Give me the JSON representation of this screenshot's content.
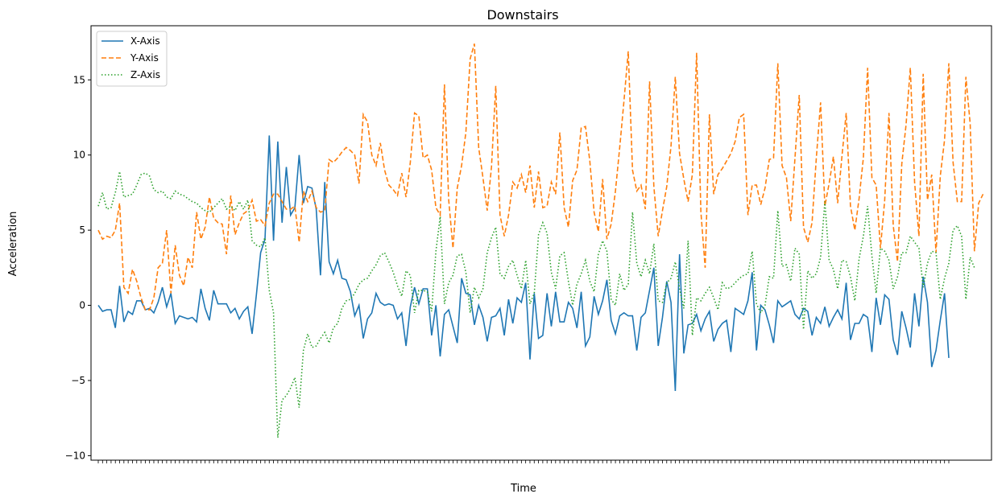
{
  "chart_data": {
    "type": "line",
    "title": "Downstairs",
    "xlabel": "Time",
    "ylabel": "Acceleration",
    "ylim": [
      -10.3,
      18.6
    ],
    "yticks": [
      -10,
      -5,
      0,
      5,
      10,
      15
    ],
    "ytick_labels": [
      "−10",
      "−5",
      "0",
      "5",
      "10",
      "15"
    ],
    "grid": false,
    "legend_position": "top-left",
    "series": [
      {
        "name": "X-Axis",
        "color": "#1f77b4",
        "style": "solid",
        "values": [
          0.0,
          -0.4,
          -0.3,
          -0.3,
          -1.5,
          1.3,
          -1.1,
          -0.4,
          -0.6,
          0.3,
          0.3,
          -0.3,
          -0.2,
          -0.5,
          0.2,
          1.2,
          -0.1,
          0.8,
          -1.2,
          -0.7,
          -0.8,
          -0.9,
          -0.8,
          -1.1,
          1.1,
          -0.2,
          -1.0,
          1.0,
          0.1,
          0.1,
          0.1,
          -0.5,
          -0.2,
          -0.9,
          -0.4,
          -0.1,
          -1.9,
          0.7,
          3.5,
          4.4,
          11.3,
          4.3,
          10.9,
          5.5,
          9.2,
          6.0,
          6.5,
          10.0,
          6.8,
          7.9,
          7.8,
          6.4,
          2.0,
          8.2,
          2.9,
          2.1,
          3.0,
          1.8,
          1.7,
          0.9,
          -0.7,
          0.0,
          -2.2,
          -0.9,
          -0.5,
          0.8,
          0.2,
          0.0,
          0.1,
          0.0,
          -0.9,
          -0.5,
          -2.7,
          -0.1,
          1.2,
          0.1,
          1.1,
          1.1,
          -2.0,
          0.0,
          -3.4,
          -0.6,
          -0.3,
          -1.4,
          -2.5,
          1.8,
          0.8,
          0.7,
          -1.3,
          0.0,
          -0.8,
          -2.4,
          -0.8,
          -0.7,
          -0.2,
          -2.0,
          0.4,
          -1.2,
          0.5,
          0.2,
          1.5,
          -3.6,
          0.8,
          -2.2,
          -2.0,
          0.8,
          -1.4,
          0.9,
          -1.1,
          -1.1,
          0.2,
          -0.2,
          -1.5,
          0.9,
          -2.7,
          -2.1,
          0.6,
          -0.6,
          0.3,
          1.7,
          -1.0,
          -1.9,
          -0.7,
          -0.5,
          -0.7,
          -0.7,
          -3.0,
          -0.8,
          -0.5,
          1.0,
          2.5,
          -2.7,
          -0.8,
          1.6,
          0.2,
          -5.7,
          3.4,
          -3.2,
          -1.3,
          -1.2,
          -0.6,
          -1.7,
          -0.9,
          -0.4,
          -2.4,
          -1.6,
          -1.2,
          -1.0,
          -3.1,
          -0.2,
          -0.4,
          -0.6,
          0.3,
          2.2,
          -3.0,
          0.0,
          -0.3,
          -1.3,
          -2.5,
          0.3,
          -0.1,
          0.1,
          0.3,
          -0.6,
          -0.9,
          -0.2,
          -0.4,
          -2.0,
          -0.8,
          -1.2,
          -0.1,
          -1.4,
          -0.8,
          -0.3,
          -0.9,
          1.5,
          -2.3,
          -1.2,
          -1.2,
          -0.6,
          -0.8,
          -3.1,
          0.5,
          -1.3,
          0.7,
          0.4,
          -2.3,
          -3.3,
          -0.4,
          -1.5,
          -2.8,
          0.8,
          -1.4,
          1.9,
          0.2,
          -4.1,
          -3.0,
          -1.0,
          0.8,
          -3.5
        ]
      },
      {
        "name": "Y-Axis",
        "color": "#ff7f0e",
        "style": "dashed",
        "values": [
          5.0,
          4.4,
          4.6,
          4.5,
          5.0,
          6.8,
          1.2,
          0.8,
          2.4,
          1.6,
          0.5,
          -0.3,
          -0.3,
          0.5,
          2.5,
          2.8,
          5.0,
          0.8,
          4.0,
          2.0,
          1.3,
          3.2,
          2.5,
          6.2,
          4.4,
          5.2,
          7.2,
          5.8,
          5.5,
          5.4,
          3.4,
          7.3,
          4.7,
          5.5,
          6.1,
          6.3,
          7.0,
          5.6,
          5.7,
          5.3,
          6.8,
          7.4,
          7.4,
          6.9,
          6.4,
          6.4,
          6.6,
          4.2,
          7.6,
          6.9,
          7.6,
          6.5,
          6.2,
          6.3,
          9.7,
          9.5,
          9.8,
          10.2,
          10.5,
          10.3,
          10.0,
          8.1,
          12.7,
          12.2,
          10.0,
          9.3,
          10.8,
          9.0,
          8.0,
          7.7,
          7.3,
          8.8,
          7.2,
          9.5,
          12.8,
          12.6,
          9.8,
          10.0,
          9.0,
          6.5,
          6.0,
          14.7,
          7.0,
          3.8,
          7.8,
          9.3,
          11.5,
          16.4,
          17.4,
          10.5,
          8.5,
          6.3,
          9.2,
          14.6,
          6.0,
          4.6,
          6.0,
          8.2,
          7.8,
          8.7,
          7.5,
          9.3,
          6.5,
          8.9,
          6.5,
          6.6,
          8.2,
          7.4,
          11.5,
          6.5,
          5.2,
          8.3,
          9.0,
          11.8,
          11.9,
          9.6,
          6.2,
          4.9,
          8.4,
          4.4,
          5.4,
          7.6,
          10.5,
          13.6,
          16.9,
          9.0,
          7.6,
          8.0,
          6.4,
          14.9,
          7.9,
          4.6,
          6.3,
          7.9,
          10.6,
          15.2,
          10.1,
          8.4,
          6.9,
          8.7,
          16.8,
          6.2,
          2.5,
          12.7,
          7.4,
          8.7,
          9.1,
          9.6,
          10.1,
          10.9,
          12.5,
          12.7,
          6.0,
          8.0,
          8.0,
          6.7,
          7.8,
          9.7,
          9.8,
          16.1,
          9.3,
          8.5,
          5.6,
          9.8,
          14.0,
          5.2,
          4.2,
          5.5,
          9.8,
          13.5,
          6.6,
          8.1,
          9.9,
          6.8,
          9.9,
          12.8,
          6.6,
          5.0,
          7.1,
          9.8,
          15.8,
          8.5,
          8.0,
          3.8,
          7.0,
          12.8,
          5.3,
          2.9,
          9.4,
          12.0,
          15.8,
          8.2,
          4.6,
          15.4,
          7.0,
          8.7,
          3.5,
          8.6,
          11.0,
          16.1,
          9.5,
          6.9,
          6.9,
          15.2,
          12.1,
          3.6,
          6.8,
          7.4
        ]
      },
      {
        "name": "Z-Axis",
        "color": "#2ca02c",
        "style": "dotted",
        "values": [
          6.6,
          7.5,
          6.4,
          6.5,
          7.5,
          8.9,
          7.2,
          7.3,
          7.4,
          8.0,
          8.7,
          8.8,
          8.6,
          7.7,
          7.5,
          7.6,
          7.2,
          7.1,
          7.6,
          7.4,
          7.3,
          7.1,
          6.9,
          6.8,
          6.5,
          6.3,
          6.2,
          6.5,
          6.8,
          7.1,
          6.4,
          6.6,
          6.3,
          6.9,
          6.4,
          7.0,
          4.3,
          4.0,
          3.9,
          4.5,
          1.0,
          -0.5,
          -8.8,
          -6.3,
          -6.0,
          -5.5,
          -4.8,
          -6.8,
          -3.0,
          -1.9,
          -2.8,
          -2.7,
          -2.2,
          -1.8,
          -2.5,
          -1.5,
          -1.2,
          -0.2,
          0.3,
          0.4,
          0.8,
          1.4,
          1.7,
          1.8,
          2.3,
          2.7,
          3.3,
          3.5,
          2.9,
          2.2,
          1.3,
          0.6,
          2.3,
          2.0,
          -0.5,
          1.0,
          1.0,
          0.9,
          -0.4,
          3.6,
          5.9,
          0.1,
          1.5,
          2.0,
          3.3,
          3.4,
          2.2,
          -0.5,
          1.2,
          0.5,
          1.1,
          3.5,
          4.5,
          5.2,
          2.1,
          1.8,
          2.6,
          3.0,
          2.0,
          1.1,
          3.0,
          0.1,
          0.8,
          4.7,
          5.5,
          4.8,
          2.2,
          1.1,
          3.3,
          3.5,
          1.6,
          0.0,
          1.4,
          2.1,
          3.0,
          1.6,
          0.9,
          3.4,
          4.3,
          3.6,
          0.4,
          0.0,
          2.1,
          1.0,
          1.4,
          6.2,
          2.8,
          1.9,
          3.0,
          2.1,
          4.1,
          0.3,
          0.2,
          1.5,
          1.8,
          2.9,
          1.1,
          -0.2,
          4.3,
          -2.0,
          0.5,
          0.3,
          0.8,
          1.2,
          0.5,
          -0.3,
          1.5,
          1.1,
          1.2,
          1.5,
          1.8,
          2.0,
          2.1,
          3.6,
          0.1,
          -0.5,
          0.0,
          1.9,
          1.8,
          6.3,
          2.6,
          2.7,
          1.6,
          3.8,
          3.4,
          -1.6,
          2.3,
          1.8,
          2.1,
          3.2,
          6.9,
          3.0,
          2.4,
          1.1,
          3.0,
          2.9,
          1.9,
          0.3,
          3.1,
          4.6,
          6.6,
          3.3,
          0.8,
          3.8,
          3.6,
          3.0,
          1.1,
          1.9,
          3.5,
          3.5,
          4.6,
          4.2,
          3.8,
          1.2,
          2.8,
          3.6,
          3.5,
          0.4,
          1.8,
          2.8,
          5.0,
          5.3,
          4.6,
          0.4,
          3.2,
          2.5
        ]
      }
    ]
  }
}
